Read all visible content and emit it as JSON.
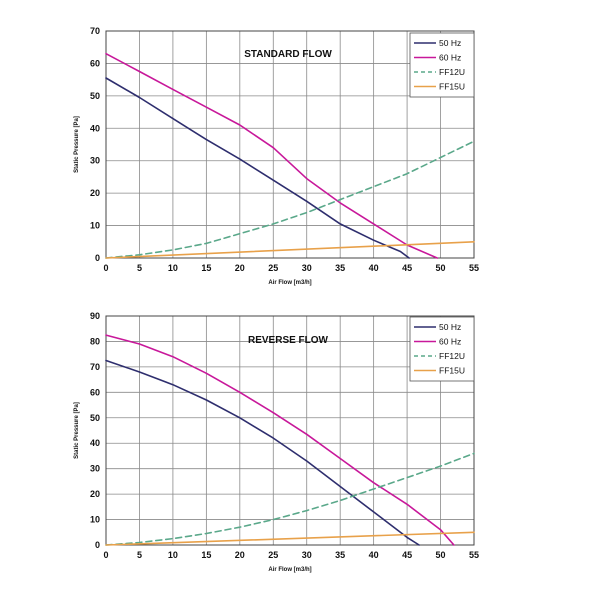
{
  "chart_data": [
    {
      "type": "line",
      "title": "STANDARD FLOW",
      "xlabel": "Air Flow [m3/h]",
      "ylabel": "Static Pressure [Pa]",
      "xlim": [
        0,
        55
      ],
      "ylim": [
        0,
        70
      ],
      "xticks": [
        0,
        5,
        10,
        15,
        20,
        25,
        30,
        35,
        40,
        45,
        50,
        55
      ],
      "yticks": [
        0,
        10,
        20,
        30,
        40,
        50,
        60,
        70
      ],
      "grid": true,
      "legend": "top-right",
      "series": [
        {
          "name": "50 Hz",
          "color": "#2e2e6e",
          "dash": "solid",
          "x": [
            0,
            5,
            10,
            15,
            20,
            25,
            30,
            35,
            40,
            44,
            45.3
          ],
          "y": [
            55.5,
            49.5,
            43,
            36.5,
            30.5,
            24,
            17.5,
            10.5,
            5.5,
            2,
            0
          ]
        },
        {
          "name": "60 Hz",
          "color": "#c8189a",
          "dash": "solid",
          "x": [
            0,
            5,
            10,
            15,
            20,
            25,
            30,
            35,
            40,
            45,
            49.5
          ],
          "y": [
            63,
            57.5,
            52,
            46.5,
            41,
            34,
            24.5,
            17,
            10.5,
            4,
            0
          ]
        },
        {
          "name": "FF12U",
          "color": "#5aa88a",
          "dash": "dashed",
          "x": [
            0,
            5,
            10,
            15,
            20,
            25,
            30,
            35,
            40,
            45,
            50,
            55
          ],
          "y": [
            0,
            1,
            2.5,
            4.5,
            7.5,
            10.5,
            14,
            18,
            22,
            26,
            31,
            36
          ]
        },
        {
          "name": "FF15U",
          "color": "#e8a14a",
          "dash": "solid",
          "x": [
            0,
            55
          ],
          "y": [
            0,
            5
          ]
        }
      ]
    },
    {
      "type": "line",
      "title": "REVERSE FLOW",
      "xlabel": "Air Flow [m3/h]",
      "ylabel": "Static Pressure [Pa]",
      "xlim": [
        0,
        55
      ],
      "ylim": [
        0,
        90
      ],
      "xticks": [
        0,
        5,
        10,
        15,
        20,
        25,
        30,
        35,
        40,
        45,
        50,
        55
      ],
      "yticks": [
        0,
        10,
        20,
        30,
        40,
        50,
        60,
        70,
        80,
        90
      ],
      "grid": true,
      "legend": "top-right",
      "series": [
        {
          "name": "50 Hz",
          "color": "#2e2e6e",
          "dash": "solid",
          "x": [
            0,
            5,
            10,
            15,
            20,
            25,
            30,
            35,
            40,
            45,
            46.8
          ],
          "y": [
            72.5,
            68,
            63,
            57,
            50,
            42,
            33,
            23,
            13,
            3,
            0
          ]
        },
        {
          "name": "60 Hz",
          "color": "#c8189a",
          "dash": "solid",
          "x": [
            0,
            5,
            10,
            15,
            20,
            25,
            30,
            35,
            40,
            45,
            50,
            52
          ],
          "y": [
            82.5,
            79,
            74,
            67.5,
            60,
            52,
            43.5,
            34,
            24.5,
            16,
            6,
            0
          ]
        },
        {
          "name": "FF12U",
          "color": "#5aa88a",
          "dash": "dashed",
          "x": [
            0,
            5,
            10,
            15,
            20,
            25,
            30,
            35,
            40,
            45,
            50,
            55
          ],
          "y": [
            0,
            1,
            2.5,
            4.5,
            7,
            10,
            13.5,
            17.5,
            22,
            26.5,
            31,
            36
          ]
        },
        {
          "name": "FF15U",
          "color": "#e8a14a",
          "dash": "solid",
          "x": [
            0,
            55
          ],
          "y": [
            0,
            5
          ]
        }
      ]
    }
  ]
}
